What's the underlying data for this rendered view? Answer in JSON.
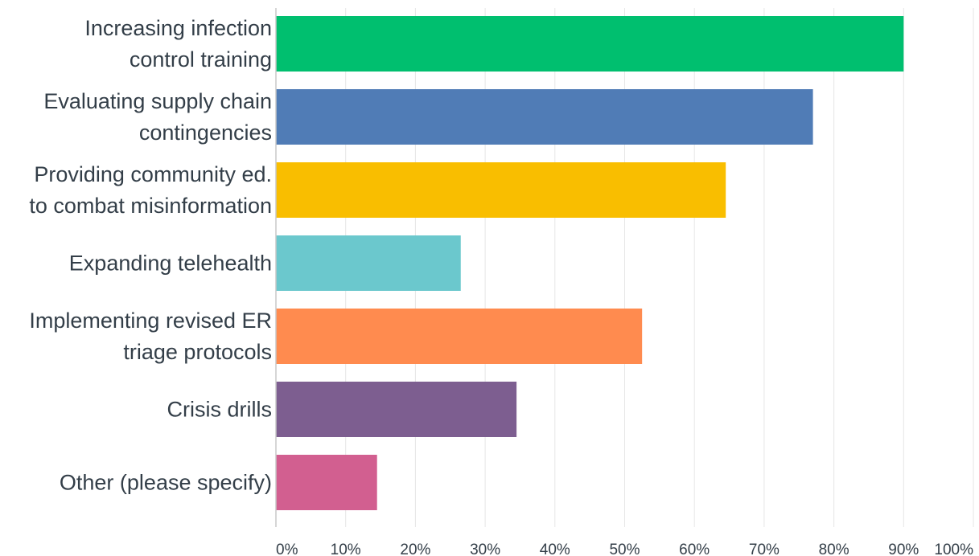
{
  "chart_data": {
    "type": "bar",
    "orientation": "horizontal",
    "categories": [
      [
        "Increasing infection",
        "control training"
      ],
      [
        "Evaluating supply chain",
        "contingencies"
      ],
      [
        "Providing community ed.",
        "to combat misinformation"
      ],
      [
        "Expanding telehealth"
      ],
      [
        "Implementing revised ER",
        "triage protocols"
      ],
      [
        "Crisis drills"
      ],
      [
        "Other (please specify)"
      ]
    ],
    "values": [
      90,
      77,
      64.5,
      26.5,
      52.5,
      34.5,
      14.5
    ],
    "colors": [
      "#00bf6f",
      "#507cb6",
      "#f9be00",
      "#6bc8cd",
      "#ff8b4f",
      "#7d5e90",
      "#d25f90"
    ],
    "xlim": [
      0,
      100
    ],
    "x_ticks": [
      0,
      10,
      20,
      30,
      40,
      50,
      60,
      70,
      80,
      90,
      100
    ],
    "x_tick_labels": [
      "0%",
      "10%",
      "20%",
      "30%",
      "40%",
      "50%",
      "60%",
      "70%",
      "80%",
      "90%",
      "100%"
    ],
    "grid": true,
    "title": "",
    "xlabel": "",
    "ylabel": ""
  }
}
